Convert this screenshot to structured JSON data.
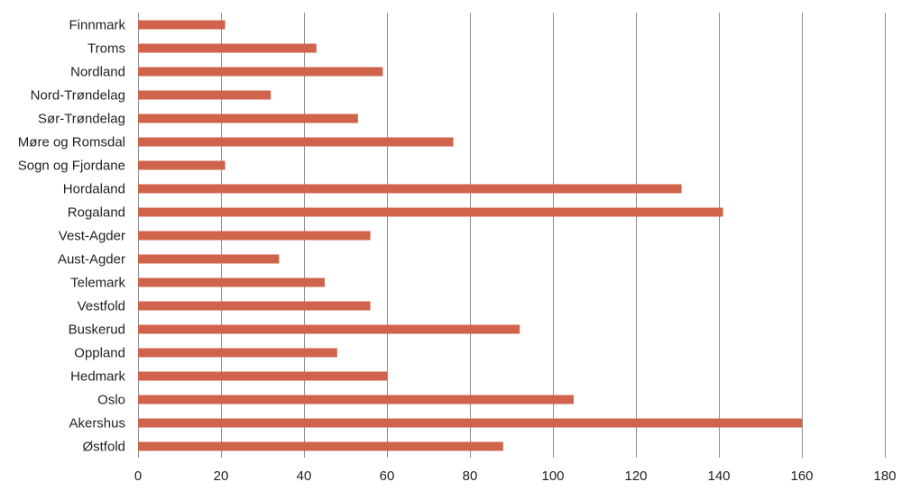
{
  "chart_data": {
    "type": "bar",
    "orientation": "horizontal",
    "title": "",
    "xlabel": "",
    "ylabel": "",
    "xlim": [
      0,
      180
    ],
    "xticks": [
      0,
      20,
      40,
      60,
      80,
      100,
      120,
      140,
      160,
      180
    ],
    "grid": "vertical",
    "legend": "none",
    "bar_color": "#d0634b",
    "categories": [
      "Finnmark",
      "Troms",
      "Nordland",
      "Nord-Trøndelag",
      "Sør-Trøndelag",
      "Møre og Romsdal",
      "Sogn og Fjordane",
      "Hordaland",
      "Rogaland",
      "Vest-Agder",
      "Aust-Agder",
      "Telemark",
      "Vestfold",
      "Buskerud",
      "Oppland",
      "Hedmark",
      "Oslo",
      "Akershus",
      "Østfold"
    ],
    "values": [
      21,
      43,
      59,
      32,
      53,
      76,
      21,
      131,
      141,
      56,
      34,
      45,
      56,
      92,
      48,
      60,
      105,
      160,
      88
    ]
  }
}
